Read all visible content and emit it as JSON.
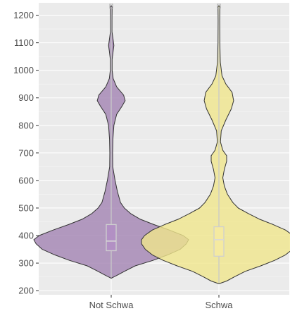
{
  "chart_data": {
    "type": "violin",
    "categories": [
      "Not Schwa",
      "Schwa"
    ],
    "ylim": [
      185,
      1245
    ],
    "y_ticks": [
      200,
      300,
      400,
      500,
      600,
      700,
      800,
      900,
      1000,
      1100,
      1200
    ],
    "grid": true,
    "legend": "none",
    "series": [
      {
        "category": "Not Schwa",
        "fill": "#a383b3",
        "box": {
          "q1": 345,
          "median": 380,
          "q3": 440,
          "whisker_low": 248,
          "whisker_high": 1230
        },
        "density": [
          [
            245,
            0.0
          ],
          [
            255,
            0.07
          ],
          [
            270,
            0.17
          ],
          [
            290,
            0.31
          ],
          [
            310,
            0.54
          ],
          [
            330,
            0.73
          ],
          [
            350,
            0.89
          ],
          [
            370,
            0.97
          ],
          [
            385,
            1.0
          ],
          [
            400,
            0.93
          ],
          [
            420,
            0.75
          ],
          [
            440,
            0.55
          ],
          [
            460,
            0.37
          ],
          [
            480,
            0.25
          ],
          [
            500,
            0.17
          ],
          [
            520,
            0.12
          ],
          [
            560,
            0.08
          ],
          [
            600,
            0.05
          ],
          [
            650,
            0.02
          ],
          [
            700,
            0.018
          ],
          [
            750,
            0.022
          ],
          [
            800,
            0.035
          ],
          [
            840,
            0.07
          ],
          [
            870,
            0.14
          ],
          [
            890,
            0.18
          ],
          [
            910,
            0.16
          ],
          [
            940,
            0.07
          ],
          [
            970,
            0.025
          ],
          [
            1000,
            0.012
          ],
          [
            1040,
            0.012
          ],
          [
            1070,
            0.025
          ],
          [
            1090,
            0.035
          ],
          [
            1110,
            0.025
          ],
          [
            1140,
            0.01
          ],
          [
            1180,
            0.01
          ],
          [
            1230,
            0.012
          ],
          [
            1235,
            0.0
          ]
        ]
      },
      {
        "category": "Schwa",
        "fill": "#f0e68c",
        "box": {
          "q1": 325,
          "median": 385,
          "q3": 432,
          "whisker_low": 228,
          "whisker_high": 1230
        },
        "density": [
          [
            225,
            0.0
          ],
          [
            235,
            0.1
          ],
          [
            250,
            0.2
          ],
          [
            270,
            0.34
          ],
          [
            290,
            0.54
          ],
          [
            310,
            0.72
          ],
          [
            330,
            0.86
          ],
          [
            350,
            0.95
          ],
          [
            370,
            1.0
          ],
          [
            385,
            1.0
          ],
          [
            400,
            0.96
          ],
          [
            420,
            0.86
          ],
          [
            440,
            0.7
          ],
          [
            460,
            0.52
          ],
          [
            480,
            0.38
          ],
          [
            500,
            0.25
          ],
          [
            520,
            0.18
          ],
          [
            550,
            0.11
          ],
          [
            580,
            0.07
          ],
          [
            610,
            0.05
          ],
          [
            640,
            0.07
          ],
          [
            670,
            0.1
          ],
          [
            690,
            0.1
          ],
          [
            710,
            0.05
          ],
          [
            740,
            0.02
          ],
          [
            780,
            0.03
          ],
          [
            820,
            0.09
          ],
          [
            860,
            0.16
          ],
          [
            890,
            0.19
          ],
          [
            920,
            0.17
          ],
          [
            950,
            0.09
          ],
          [
            980,
            0.04
          ],
          [
            1030,
            0.018
          ],
          [
            1100,
            0.012
          ],
          [
            1180,
            0.01
          ],
          [
            1230,
            0.012
          ],
          [
            1235,
            0.0
          ]
        ]
      }
    ]
  }
}
